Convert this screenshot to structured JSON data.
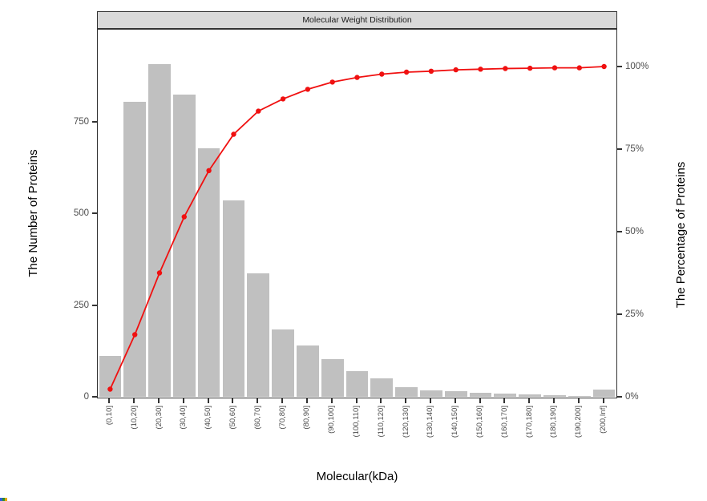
{
  "chart_data": {
    "type": "bar+line",
    "title": "Molecular Weight Distribution",
    "xlabel": "Molecular(kDa)",
    "ylabel_left": "The Number of Proteins",
    "ylabel_right": "The Percentage of Proteins",
    "categories": [
      "(0,10]",
      "(10,20]",
      "(20,30]",
      "(30,40]",
      "(40,50]",
      "(50,60]",
      "(60,70]",
      "(70,80]",
      "(80,90]",
      "(90,100]",
      "(100,110]",
      "(110,120]",
      "(120,130]",
      "(130,140]",
      "(140,150]",
      "(150,160]",
      "(160,170]",
      "(170,180]",
      "(180,190]",
      "(190,200]",
      "(200,Inf]"
    ],
    "series": [
      {
        "name": "The Number of Proteins",
        "type": "bar",
        "axis": "left",
        "values": [
          111,
          803,
          906,
          824,
          677,
          535,
          336,
          183,
          140,
          103,
          70,
          50,
          26,
          18,
          15,
          12,
          8,
          6,
          4,
          2,
          20
        ]
      },
      {
        "name": "The Percentage of Proteins (cumulative)",
        "type": "line",
        "axis": "right",
        "values": [
          2.3,
          18.8,
          37.5,
          54.5,
          68.5,
          79.5,
          86.5,
          90.2,
          93.1,
          95.3,
          96.7,
          97.7,
          98.3,
          98.6,
          99.0,
          99.2,
          99.4,
          99.5,
          99.6,
          99.6,
          100.0
        ]
      }
    ],
    "y_axis_left": {
      "ticks": [
        {
          "label": "0",
          "value": 0
        },
        {
          "label": "250",
          "value": 250
        },
        {
          "label": "500",
          "value": 500
        },
        {
          "label": "750",
          "value": 750
        }
      ],
      "lim": [
        0,
        1005
      ]
    },
    "y_axis_right": {
      "ticks": [
        {
          "label": "0%",
          "value": 0
        },
        {
          "label": "25%",
          "value": 25
        },
        {
          "label": "50%",
          "value": 50
        },
        {
          "label": "75%",
          "value": 75
        },
        {
          "label": "100%",
          "value": 100
        }
      ],
      "lim": [
        0,
        112
      ]
    },
    "grid": "off",
    "legend": "none",
    "colors": {
      "bar": "#c0c0c0",
      "line": "#f01010",
      "strip_bg": "#d9d9d9",
      "border": "#333333",
      "tick_text": "#4d4d4d",
      "title_text": "#000000"
    }
  },
  "artifact": {
    "colors": [
      "#2b5fd9",
      "#2e8b2e",
      "#e0a800"
    ]
  }
}
